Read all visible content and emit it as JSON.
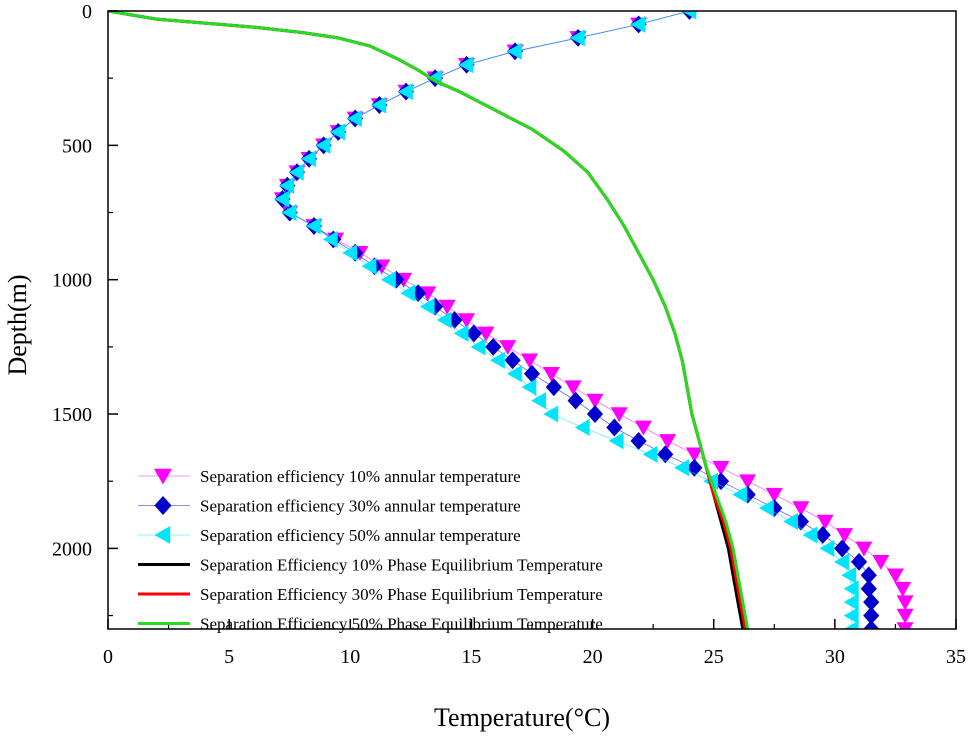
{
  "chart_data": {
    "type": "line",
    "title": "",
    "xlabel": "Temperature(°C)",
    "ylabel": "Depth(m)",
    "xlim": [
      0,
      35
    ],
    "ylim": [
      0,
      2300
    ],
    "y_inverted": true,
    "xticks": [
      0,
      5,
      10,
      15,
      20,
      25,
      30,
      35
    ],
    "xtick_labels": [
      "0",
      "5",
      "10",
      "15",
      "20",
      "25",
      "30",
      "35"
    ],
    "yticks": [
      0,
      500,
      1000,
      1500,
      2000
    ],
    "ytick_labels": [
      "0",
      "500",
      "1000",
      "1500",
      "2000"
    ],
    "grid": false,
    "legend_position": "bottom-left",
    "series": [
      {
        "name": "Separation efficiency 10% annular temperature",
        "color": "#ff00ff",
        "marker": "triangle-down",
        "points": [
          [
            24.0,
            0
          ],
          [
            21.9,
            50
          ],
          [
            19.4,
            100
          ],
          [
            16.8,
            150
          ],
          [
            14.8,
            200
          ],
          [
            13.5,
            250
          ],
          [
            12.3,
            300
          ],
          [
            11.2,
            350
          ],
          [
            10.2,
            400
          ],
          [
            9.5,
            450
          ],
          [
            8.9,
            500
          ],
          [
            8.3,
            550
          ],
          [
            7.8,
            600
          ],
          [
            7.4,
            650
          ],
          [
            7.2,
            700
          ],
          [
            7.5,
            750
          ],
          [
            8.5,
            800
          ],
          [
            9.4,
            850
          ],
          [
            10.4,
            900
          ],
          [
            11.3,
            950
          ],
          [
            12.2,
            1000
          ],
          [
            13.2,
            1050
          ],
          [
            14.0,
            1100
          ],
          [
            14.8,
            1150
          ],
          [
            15.6,
            1200
          ],
          [
            16.5,
            1250
          ],
          [
            17.4,
            1300
          ],
          [
            18.3,
            1350
          ],
          [
            19.2,
            1400
          ],
          [
            20.1,
            1450
          ],
          [
            21.1,
            1500
          ],
          [
            22.1,
            1550
          ],
          [
            23.1,
            1600
          ],
          [
            24.2,
            1650
          ],
          [
            25.3,
            1700
          ],
          [
            26.4,
            1750
          ],
          [
            27.5,
            1800
          ],
          [
            28.6,
            1850
          ],
          [
            29.6,
            1900
          ],
          [
            30.4,
            1950
          ],
          [
            31.2,
            2000
          ],
          [
            31.9,
            2050
          ],
          [
            32.5,
            2100
          ],
          [
            32.8,
            2150
          ],
          [
            32.9,
            2200
          ],
          [
            32.9,
            2250
          ],
          [
            32.9,
            2300
          ]
        ]
      },
      {
        "name": "Separation efficiency 30% annular temperature",
        "color": "#0000cc",
        "marker": "diamond",
        "points": [
          [
            24.0,
            0
          ],
          [
            21.9,
            50
          ],
          [
            19.4,
            100
          ],
          [
            16.8,
            150
          ],
          [
            14.8,
            200
          ],
          [
            13.5,
            250
          ],
          [
            12.3,
            300
          ],
          [
            11.2,
            350
          ],
          [
            10.2,
            400
          ],
          [
            9.5,
            450
          ],
          [
            8.9,
            500
          ],
          [
            8.3,
            550
          ],
          [
            7.8,
            600
          ],
          [
            7.4,
            650
          ],
          [
            7.2,
            700
          ],
          [
            7.5,
            750
          ],
          [
            8.5,
            800
          ],
          [
            9.3,
            850
          ],
          [
            10.2,
            900
          ],
          [
            11.0,
            950
          ],
          [
            11.9,
            1000
          ],
          [
            12.8,
            1050
          ],
          [
            13.5,
            1100
          ],
          [
            14.3,
            1150
          ],
          [
            15.1,
            1200
          ],
          [
            15.9,
            1250
          ],
          [
            16.7,
            1300
          ],
          [
            17.5,
            1350
          ],
          [
            18.4,
            1400
          ],
          [
            19.3,
            1450
          ],
          [
            20.1,
            1500
          ],
          [
            20.9,
            1550
          ],
          [
            21.9,
            1600
          ],
          [
            23.0,
            1650
          ],
          [
            24.2,
            1700
          ],
          [
            25.3,
            1750
          ],
          [
            26.4,
            1800
          ],
          [
            27.5,
            1850
          ],
          [
            28.6,
            1900
          ],
          [
            29.5,
            1950
          ],
          [
            30.3,
            2000
          ],
          [
            31.0,
            2050
          ],
          [
            31.4,
            2100
          ],
          [
            31.4,
            2150
          ],
          [
            31.5,
            2200
          ],
          [
            31.5,
            2250
          ],
          [
            31.5,
            2300
          ]
        ]
      },
      {
        "name": "Separation efficiency 50% annular temperature",
        "color": "#00e5ff",
        "marker": "triangle-left",
        "points": [
          [
            24.0,
            0
          ],
          [
            21.9,
            50
          ],
          [
            19.4,
            100
          ],
          [
            16.8,
            150
          ],
          [
            14.8,
            200
          ],
          [
            13.5,
            250
          ],
          [
            12.3,
            300
          ],
          [
            11.2,
            350
          ],
          [
            10.2,
            400
          ],
          [
            9.5,
            450
          ],
          [
            8.9,
            500
          ],
          [
            8.3,
            550
          ],
          [
            7.8,
            600
          ],
          [
            7.4,
            650
          ],
          [
            7.2,
            700
          ],
          [
            7.5,
            750
          ],
          [
            8.5,
            800
          ],
          [
            9.2,
            850
          ],
          [
            10.0,
            900
          ],
          [
            10.8,
            950
          ],
          [
            11.6,
            1000
          ],
          [
            12.4,
            1050
          ],
          [
            13.2,
            1100
          ],
          [
            13.9,
            1150
          ],
          [
            14.6,
            1200
          ],
          [
            15.3,
            1250
          ],
          [
            16.1,
            1300
          ],
          [
            16.8,
            1350
          ],
          [
            17.4,
            1400
          ],
          [
            17.8,
            1450
          ],
          [
            18.3,
            1500
          ],
          [
            19.6,
            1550
          ],
          [
            21.0,
            1600
          ],
          [
            22.4,
            1650
          ],
          [
            23.7,
            1700
          ],
          [
            24.9,
            1750
          ],
          [
            26.1,
            1800
          ],
          [
            27.2,
            1850
          ],
          [
            28.2,
            1900
          ],
          [
            29.0,
            1950
          ],
          [
            29.7,
            2000
          ],
          [
            30.3,
            2050
          ],
          [
            30.6,
            2100
          ],
          [
            30.7,
            2150
          ],
          [
            30.7,
            2200
          ],
          [
            30.7,
            2250
          ],
          [
            30.7,
            2300
          ]
        ]
      },
      {
        "name": "Separation Efficiency 10% Phase Equilibrium Temperature",
        "color": "#000000",
        "marker": "none",
        "points": [
          [
            0,
            0
          ],
          [
            2.0,
            30
          ],
          [
            4.0,
            45
          ],
          [
            6.0,
            60
          ],
          [
            8.0,
            80
          ],
          [
            9.5,
            100
          ],
          [
            10.8,
            130
          ],
          [
            12.0,
            180
          ],
          [
            12.8,
            220
          ],
          [
            13.5,
            260
          ],
          [
            14.5,
            300
          ],
          [
            16.0,
            370
          ],
          [
            17.5,
            440
          ],
          [
            18.8,
            520
          ],
          [
            19.8,
            600
          ],
          [
            20.6,
            700
          ],
          [
            21.3,
            800
          ],
          [
            21.9,
            900
          ],
          [
            22.5,
            1000
          ],
          [
            23.0,
            1100
          ],
          [
            23.4,
            1200
          ],
          [
            23.7,
            1300
          ],
          [
            23.9,
            1400
          ],
          [
            24.1,
            1500
          ],
          [
            24.4,
            1600
          ],
          [
            24.7,
            1700
          ],
          [
            25.0,
            1800
          ],
          [
            25.3,
            1900
          ],
          [
            25.6,
            2000
          ],
          [
            25.8,
            2100
          ],
          [
            26.0,
            2200
          ],
          [
            26.1,
            2250
          ],
          [
            26.2,
            2300
          ]
        ]
      },
      {
        "name": "Separation Efficiency 30% Phase Equilibrium Temperature",
        "color": "#ff0000",
        "marker": "none",
        "points": [
          [
            0,
            0
          ],
          [
            2.0,
            30
          ],
          [
            4.0,
            45
          ],
          [
            6.0,
            60
          ],
          [
            8.0,
            80
          ],
          [
            9.5,
            100
          ],
          [
            10.8,
            130
          ],
          [
            12.0,
            180
          ],
          [
            12.8,
            220
          ],
          [
            13.5,
            260
          ],
          [
            14.5,
            300
          ],
          [
            16.0,
            370
          ],
          [
            17.5,
            440
          ],
          [
            18.8,
            520
          ],
          [
            19.8,
            600
          ],
          [
            20.6,
            700
          ],
          [
            21.3,
            800
          ],
          [
            21.9,
            900
          ],
          [
            22.5,
            1000
          ],
          [
            23.0,
            1100
          ],
          [
            23.4,
            1200
          ],
          [
            23.7,
            1300
          ],
          [
            23.9,
            1400
          ],
          [
            24.1,
            1500
          ],
          [
            24.4,
            1600
          ],
          [
            24.7,
            1700
          ],
          [
            25.0,
            1800
          ],
          [
            25.4,
            1900
          ],
          [
            25.7,
            2000
          ],
          [
            25.9,
            2100
          ],
          [
            26.1,
            2200
          ],
          [
            26.2,
            2250
          ],
          [
            26.3,
            2300
          ]
        ]
      },
      {
        "name": "Separation Efficiency 50% Phase Equilibrium Temperature",
        "color": "#22dd22",
        "marker": "none",
        "points": [
          [
            0,
            0
          ],
          [
            2.0,
            30
          ],
          [
            4.0,
            45
          ],
          [
            6.0,
            60
          ],
          [
            8.0,
            80
          ],
          [
            9.5,
            100
          ],
          [
            10.8,
            130
          ],
          [
            12.0,
            180
          ],
          [
            12.8,
            220
          ],
          [
            13.5,
            260
          ],
          [
            14.5,
            300
          ],
          [
            16.0,
            370
          ],
          [
            17.5,
            440
          ],
          [
            18.8,
            520
          ],
          [
            19.8,
            600
          ],
          [
            20.6,
            700
          ],
          [
            21.3,
            800
          ],
          [
            21.9,
            900
          ],
          [
            22.5,
            1000
          ],
          [
            23.0,
            1100
          ],
          [
            23.4,
            1200
          ],
          [
            23.7,
            1300
          ],
          [
            23.9,
            1400
          ],
          [
            24.1,
            1500
          ],
          [
            24.4,
            1600
          ],
          [
            24.7,
            1700
          ],
          [
            25.1,
            1800
          ],
          [
            25.5,
            1900
          ],
          [
            25.8,
            2000
          ],
          [
            26.0,
            2100
          ],
          [
            26.2,
            2200
          ],
          [
            26.3,
            2250
          ],
          [
            26.4,
            2300
          ]
        ]
      }
    ]
  }
}
